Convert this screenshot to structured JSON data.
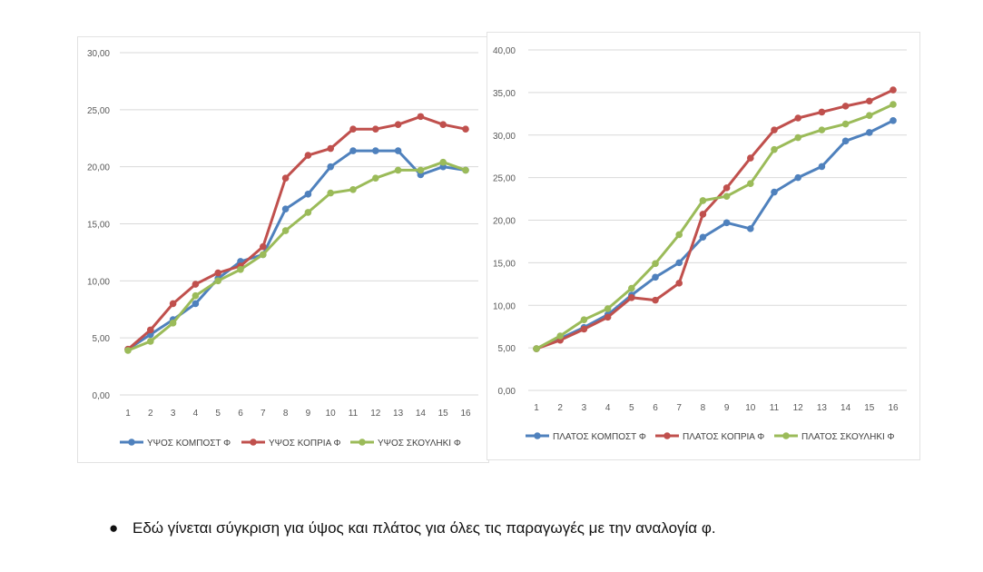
{
  "chart_data": [
    {
      "type": "line",
      "title": "",
      "xlabel": "",
      "ylabel": "",
      "x": [
        1,
        2,
        3,
        4,
        5,
        6,
        7,
        8,
        9,
        10,
        11,
        12,
        13,
        14,
        15,
        16
      ],
      "x_ticks": [
        "1",
        "2",
        "3",
        "4",
        "5",
        "6",
        "7",
        "8",
        "9",
        "10",
        "11",
        "12",
        "13",
        "14",
        "15",
        "16"
      ],
      "ylim": [
        0,
        30
      ],
      "y_ticks": [
        "0,00",
        "5,00",
        "10,00",
        "15,00",
        "20,00",
        "25,00",
        "30,00"
      ],
      "y_tick_values": [
        0,
        5,
        10,
        15,
        20,
        25,
        30
      ],
      "grid": true,
      "legend": "bottom",
      "series": [
        {
          "name": "ΥΨΟΣ ΚΟΜΠΟΣΤ Φ",
          "color": "#4f81bd",
          "values": [
            4.0,
            5.3,
            6.6,
            8.0,
            10.2,
            11.7,
            12.3,
            16.3,
            17.6,
            20.0,
            21.4,
            21.4,
            21.4,
            19.3,
            20.0,
            19.7
          ]
        },
        {
          "name": "ΥΨΟΣ ΚΟΠΡΙΑ Φ",
          "color": "#c0504d",
          "values": [
            4.0,
            5.7,
            8.0,
            9.7,
            10.7,
            11.3,
            13.0,
            19.0,
            21.0,
            21.6,
            23.3,
            23.3,
            23.7,
            24.4,
            23.7,
            23.3
          ]
        },
        {
          "name": "ΥΨΟΣ ΣΚΟΥΛΗΚΙ Φ",
          "color": "#9bbb59",
          "values": [
            3.9,
            4.7,
            6.3,
            8.7,
            10.0,
            11.0,
            12.3,
            14.4,
            16.0,
            17.7,
            18.0,
            19.0,
            19.7,
            19.7,
            20.4,
            19.7
          ]
        }
      ]
    },
    {
      "type": "line",
      "title": "",
      "xlabel": "",
      "ylabel": "",
      "x": [
        1,
        2,
        3,
        4,
        5,
        6,
        7,
        8,
        9,
        10,
        11,
        12,
        13,
        14,
        15,
        16
      ],
      "x_ticks": [
        "1",
        "2",
        "3",
        "4",
        "5",
        "6",
        "7",
        "8",
        "9",
        "10",
        "11",
        "12",
        "13",
        "14",
        "15",
        "16"
      ],
      "ylim": [
        0,
        40
      ],
      "y_ticks": [
        "0,00",
        "5,00",
        "10,00",
        "15,00",
        "20,00",
        "25,00",
        "30,00",
        "35,00",
        "40,00"
      ],
      "y_tick_values": [
        0,
        5,
        10,
        15,
        20,
        25,
        30,
        35,
        40
      ],
      "grid": true,
      "legend": "bottom",
      "series": [
        {
          "name": "ΠΛΑΤΟΣ ΚΟΜΠΟΣΤ Φ",
          "color": "#4f81bd",
          "values": [
            4.9,
            6.1,
            7.4,
            8.9,
            11.2,
            13.3,
            15.0,
            18.0,
            19.7,
            19.0,
            23.3,
            25.0,
            26.3,
            29.3,
            30.3,
            31.7
          ]
        },
        {
          "name": "ΠΛΑΤΟΣ ΚΟΠΡΙΑ Φ",
          "color": "#c0504d",
          "values": [
            4.9,
            5.9,
            7.2,
            8.6,
            10.9,
            10.6,
            12.6,
            20.7,
            23.8,
            27.3,
            30.6,
            32.0,
            32.7,
            33.4,
            34.0,
            35.3
          ]
        },
        {
          "name": "ΠΛΑΤΟΣ ΣΚΟΥΛΗΚΙ Φ",
          "color": "#9bbb59",
          "values": [
            4.9,
            6.4,
            8.3,
            9.6,
            12.0,
            14.9,
            18.3,
            22.3,
            22.8,
            24.3,
            28.3,
            29.7,
            30.6,
            31.3,
            32.3,
            33.6
          ]
        }
      ]
    }
  ],
  "caption": {
    "bullet": "●",
    "text": "Εδώ γίνεται σύγκριση για ύψος και πλάτος για όλες τις παραγωγές με την αναλογία φ."
  }
}
